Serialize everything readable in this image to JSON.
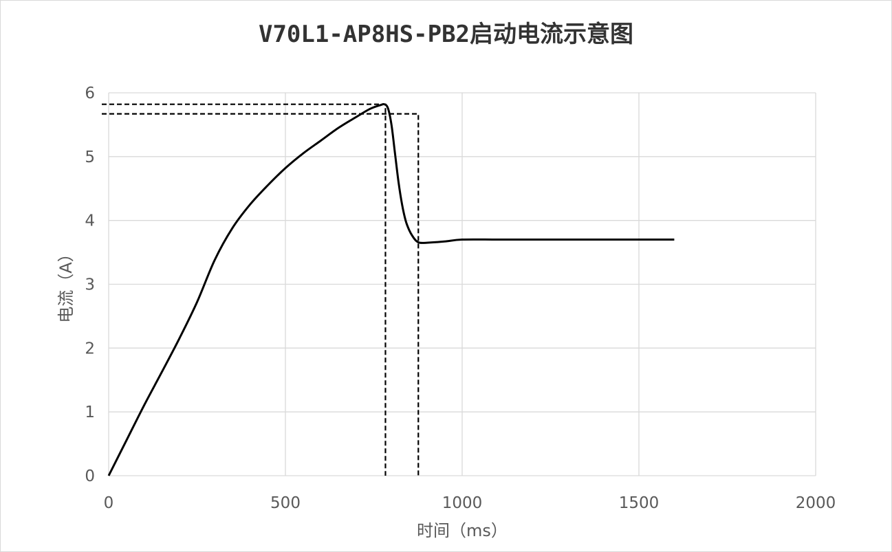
{
  "chart_data": {
    "type": "line",
    "title": "V70L1-AP8HS-PB2启动电流示意图",
    "xlabel": "时间（ms）",
    "ylabel": "电流（A）",
    "xlim": [
      0,
      2000
    ],
    "ylim": [
      0,
      6
    ],
    "xticks": [
      "0",
      "500",
      "1000",
      "1500",
      "2000"
    ],
    "yticks": [
      "0",
      "1",
      "2",
      "3",
      "4",
      "5",
      "6"
    ],
    "xtick_values": [
      0,
      500,
      1000,
      1500,
      2000
    ],
    "ytick_values": [
      0,
      1,
      2,
      3,
      4,
      5,
      6
    ],
    "grid": true,
    "legend": "none",
    "series": [
      {
        "color": "#000000",
        "x": [
          0,
          50,
          100,
          150,
          200,
          250,
          300,
          350,
          400,
          450,
          500,
          550,
          600,
          650,
          700,
          740,
          770,
          780,
          790,
          800,
          810,
          820,
          830,
          840,
          850,
          860,
          870,
          880,
          900,
          950,
          1000,
          1100,
          1200,
          1300,
          1400,
          1500,
          1600
        ],
        "y": [
          0,
          0.55,
          1.1,
          1.62,
          2.15,
          2.72,
          3.38,
          3.88,
          4.25,
          4.55,
          4.82,
          5.05,
          5.25,
          5.45,
          5.62,
          5.75,
          5.81,
          5.82,
          5.76,
          5.5,
          5.05,
          4.6,
          4.25,
          4.0,
          3.85,
          3.75,
          3.68,
          3.65,
          3.65,
          3.67,
          3.7,
          3.7,
          3.7,
          3.7,
          3.7,
          3.7,
          3.7
        ]
      }
    ],
    "annotations": [
      {
        "style": "dashed",
        "x": 783,
        "y": 5.82
      },
      {
        "style": "dashed",
        "x": 876,
        "y": 5.67
      }
    ]
  }
}
